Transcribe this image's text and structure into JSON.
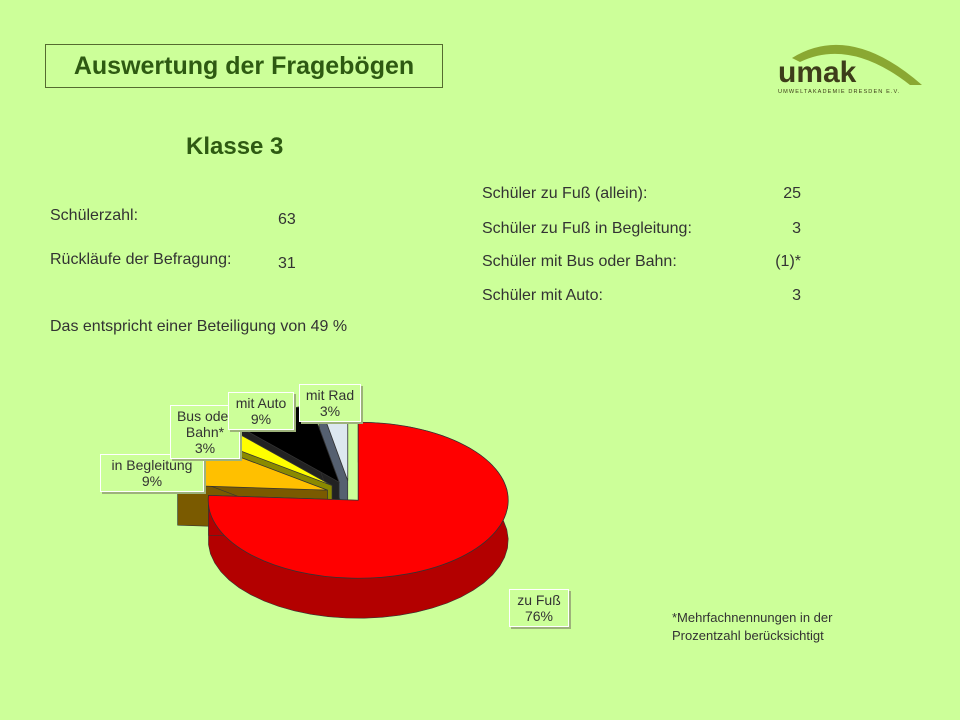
{
  "header": {
    "title": "Auswertung der Fragebögen",
    "logo_text": "umak",
    "logo_subtext": "UMWELTAKADEMIE DRESDEN E.V."
  },
  "section": {
    "heading": "Klasse 3"
  },
  "stats": {
    "schuelerzahl_label": "Schülerzahl:",
    "schuelerzahl_value": "63",
    "ruecklaeufe_label": "Rückläufe der Befragung:",
    "ruecklaeufe_value": "31",
    "beteiligung_text": "Das entspricht einer Beteiligung von 49 %"
  },
  "modes": [
    {
      "label": "Schüler zu Fuß (allein):",
      "value": "25"
    },
    {
      "label": "Schüler zu Fuß in Begleitung:",
      "value": "3"
    },
    {
      "label": "Schüler mit Bus oder Bahn:",
      "value": "(1)*"
    },
    {
      "label": "Schüler mit Auto:",
      "value": "3"
    }
  ],
  "footnote": {
    "line1": "*Mehrfachnennungen in der",
    "line2": "Prozentzahl berücksichtigt"
  },
  "colors": {
    "background": "#ccff99",
    "title": "#2e5a12",
    "logo_arc": "#8aa832",
    "logo_text": "#3d3d1a"
  },
  "chart_data": {
    "type": "pie",
    "style": "3d-exploded",
    "categories": [
      "zu Fuß",
      "in Begleitung",
      "Bus oder Bahn*",
      "mit Auto",
      "mit Rad"
    ],
    "values": [
      76,
      9,
      3,
      9,
      3
    ],
    "labels": [
      {
        "name": "zu Fuß",
        "pct": "76%"
      },
      {
        "name": "in Begleitung",
        "pct": "9%"
      },
      {
        "name": "Bus oder Bahn*",
        "pct": "3%"
      },
      {
        "name": "mit Auto",
        "pct": "9%"
      },
      {
        "name": "mit Rad",
        "pct": "3%"
      }
    ],
    "colors": [
      "#ff0000",
      "#ffc000",
      "#ffff00",
      "#000000",
      "#dde8f0"
    ],
    "side_colors": [
      "#b30000",
      "#7a5a00",
      "#8a8a00",
      "#222222",
      "#556070"
    ]
  }
}
